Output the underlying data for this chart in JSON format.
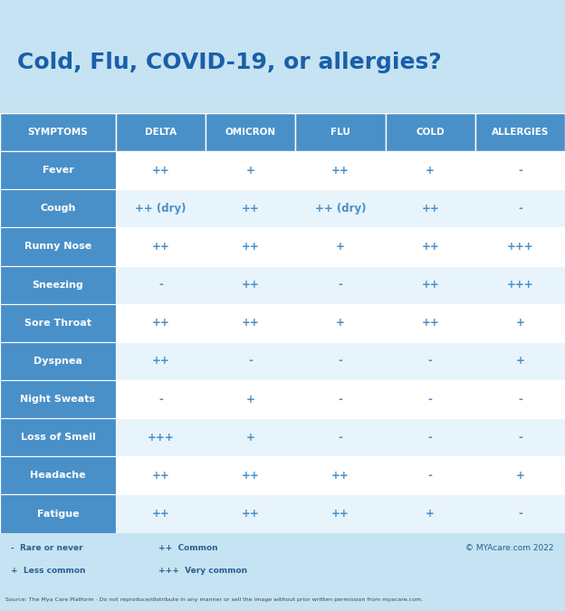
{
  "title": "Cold, Flu, COVID-19, or allergies?",
  "title_color": "#1a5fa8",
  "header_bg": "#4a90c8",
  "header_text_color": "#ffffff",
  "row_bg_odd": "#ffffff",
  "row_bg_even": "#e8f4fb",
  "symptom_col_bg": "#4a90c8",
  "symptom_text_color": "#ffffff",
  "cell_text_color": "#4a90c8",
  "title_area_bg": "#c5e3f2",
  "table_bg": "#f0f8fd",
  "columns": [
    "SYMPTOMS",
    "DELTA",
    "OMICRON",
    "FLU",
    "COLD",
    "ALLERGIES"
  ],
  "symptoms": [
    "Fever",
    "Cough",
    "Runny Nose",
    "Sneezing",
    "Sore Throat",
    "Dyspnea",
    "Night Sweats",
    "Loss of Smell",
    "Headache",
    "Fatigue"
  ],
  "data": [
    [
      "++",
      "+",
      "++",
      "+",
      "-"
    ],
    [
      "++ (dry)",
      "++",
      "++ (dry)",
      "++",
      "-"
    ],
    [
      "++",
      "++",
      "+",
      "++",
      "+++"
    ],
    [
      "-",
      "++",
      "-",
      "++",
      "+++"
    ],
    [
      "++",
      "++",
      "+",
      "++",
      "+"
    ],
    [
      "++",
      "-",
      "-",
      "-",
      "+"
    ],
    [
      "-",
      "+",
      "-",
      "-",
      "-"
    ],
    [
      "+++",
      "+",
      "-",
      "-",
      "-"
    ],
    [
      "++",
      "++",
      "++",
      "-",
      "+"
    ],
    [
      "++",
      "++",
      "++",
      "+",
      "-"
    ]
  ],
  "legend": [
    [
      "-  Rare or never",
      "++  Common"
    ],
    [
      "+  Less common",
      "+++  Very common"
    ]
  ],
  "source_text": "Source: The Mya Care Platform · Do not reproduce/distribute in any manner or sell the image without prior written permission from myacare.com.",
  "copyright_text": "© MYAcare.com 2022",
  "footer_bg": "#c5e3f2",
  "source_bg": "#daeef8"
}
